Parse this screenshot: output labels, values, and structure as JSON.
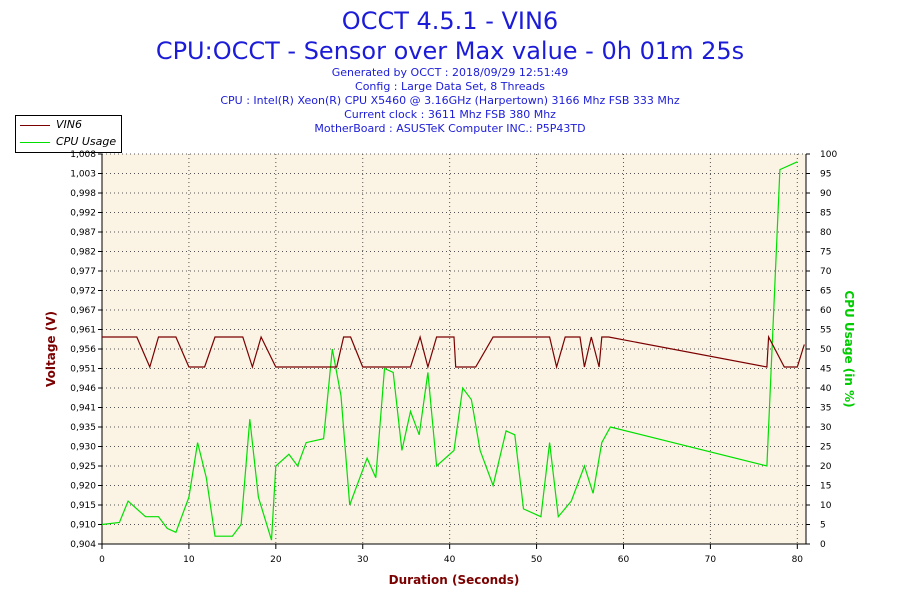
{
  "header": {
    "title": "OCCT 4.5.1 - VIN6",
    "subtitle": "CPU:OCCT - Sensor over Max value - 0h 01m 25s",
    "info": [
      "Generated by OCCT : 2018/09/29 12:51:49",
      "Config : Large Data Set, 8 Threads",
      "CPU : Intel(R) Xeon(R) CPU X5460 @ 3.16GHz (Harpertown) 3166 Mhz FSB 333 Mhz",
      "Current clock : 3611 Mhz FSB 380 Mhz",
      "MotherBoard : ASUSTeK Computer INC.: P5P43TD"
    ]
  },
  "colors": {
    "voltage": "#7b0000",
    "cpu": "#00e000",
    "title": "#1c1cd8",
    "plot_bg": "#fbf3e4",
    "axis_left_title": "#7b0000",
    "axis_right_title": "#00cc00",
    "axis_x_title": "#7b0000"
  },
  "chart_data": {
    "type": "line",
    "xlabel": "Duration (Seconds)",
    "ylabel": "Voltage (V)",
    "y2label": "CPU Usage (in %)",
    "xlim": [
      0,
      81
    ],
    "ylim": [
      0.904,
      1.008
    ],
    "y2lim": [
      0,
      100
    ],
    "x_ticks": [
      0,
      10,
      20,
      30,
      40,
      50,
      60,
      70,
      80
    ],
    "y_ticks": [
      "0,904",
      "0,910",
      "0,915",
      "0,920",
      "0,925",
      "0,930",
      "0,935",
      "0,941",
      "0,946",
      "0,951",
      "0,956",
      "0,961",
      "0,967",
      "0,972",
      "0,977",
      "0,982",
      "0,987",
      "0,992",
      "0,998",
      "1,003",
      "1,008"
    ],
    "y2_ticks": [
      0,
      5,
      10,
      15,
      20,
      25,
      30,
      35,
      40,
      45,
      50,
      55,
      60,
      65,
      70,
      75,
      80,
      85,
      90,
      95,
      100
    ],
    "grid": true,
    "legend_position": "top-left",
    "series": [
      {
        "name": "VIN6",
        "axis": "left",
        "points": [
          [
            0,
            0.9592
          ],
          [
            4,
            0.9592
          ],
          [
            5.5,
            0.9512
          ],
          [
            6.5,
            0.9592
          ],
          [
            8.5,
            0.9592
          ],
          [
            10,
            0.9512
          ],
          [
            11.8,
            0.9512
          ],
          [
            13,
            0.9592
          ],
          [
            16.2,
            0.9592
          ],
          [
            17.3,
            0.9512
          ],
          [
            18.3,
            0.9592
          ],
          [
            20,
            0.9512
          ],
          [
            27,
            0.9512
          ],
          [
            27.8,
            0.9592
          ],
          [
            28.6,
            0.9592
          ],
          [
            30,
            0.9512
          ],
          [
            35.5,
            0.9512
          ],
          [
            36.6,
            0.9592
          ],
          [
            37.5,
            0.9512
          ],
          [
            38.5,
            0.9592
          ],
          [
            40.5,
            0.9592
          ],
          [
            40.7,
            0.9512
          ],
          [
            43,
            0.9512
          ],
          [
            45,
            0.9592
          ],
          [
            51.5,
            0.9592
          ],
          [
            52.3,
            0.9512
          ],
          [
            53.3,
            0.9592
          ],
          [
            55,
            0.9592
          ],
          [
            55.5,
            0.9512
          ],
          [
            56.3,
            0.9592
          ],
          [
            57.2,
            0.9512
          ],
          [
            57.5,
            0.9592
          ],
          [
            58.3,
            0.9592
          ],
          [
            76.5,
            0.9512
          ],
          [
            76.7,
            0.9592
          ],
          [
            78.5,
            0.9512
          ],
          [
            80,
            0.9512
          ],
          [
            80.8,
            0.9572
          ]
        ]
      },
      {
        "name": "CPU Usage",
        "axis": "right",
        "points": [
          [
            0,
            5
          ],
          [
            2,
            5.5
          ],
          [
            3,
            11
          ],
          [
            5,
            7
          ],
          [
            6.5,
            7
          ],
          [
            7.5,
            4
          ],
          [
            8.5,
            3
          ],
          [
            10,
            12
          ],
          [
            11,
            26
          ],
          [
            12,
            17
          ],
          [
            13,
            2
          ],
          [
            15,
            2
          ],
          [
            16,
            5
          ],
          [
            17,
            32
          ],
          [
            18,
            12
          ],
          [
            19.5,
            1
          ],
          [
            20,
            20
          ],
          [
            21.5,
            23
          ],
          [
            22.5,
            20
          ],
          [
            23.5,
            26
          ],
          [
            25.5,
            27
          ],
          [
            26.5,
            50
          ],
          [
            27.5,
            38
          ],
          [
            28.5,
            10
          ],
          [
            30.5,
            22
          ],
          [
            31.5,
            17
          ],
          [
            32.5,
            45
          ],
          [
            33.5,
            44
          ],
          [
            34.5,
            24
          ],
          [
            35.5,
            34
          ],
          [
            36.5,
            28
          ],
          [
            37.5,
            44
          ],
          [
            38.5,
            20
          ],
          [
            40.5,
            24
          ],
          [
            41.5,
            40
          ],
          [
            42.5,
            37
          ],
          [
            43.5,
            24
          ],
          [
            45,
            15
          ],
          [
            46.5,
            29
          ],
          [
            47.5,
            28
          ],
          [
            48.5,
            9
          ],
          [
            50.5,
            7
          ],
          [
            51.5,
            26
          ],
          [
            52.5,
            7
          ],
          [
            54,
            11
          ],
          [
            55.5,
            20
          ],
          [
            56.5,
            13
          ],
          [
            57.5,
            26
          ],
          [
            58.5,
            30
          ],
          [
            76.5,
            20
          ],
          [
            78,
            96
          ],
          [
            80,
            98
          ]
        ]
      }
    ]
  }
}
